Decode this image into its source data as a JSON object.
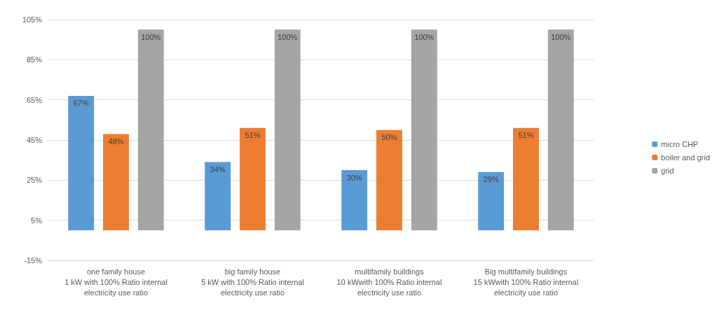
{
  "chart_data": {
    "type": "bar",
    "categories": [
      "one family house\n1 kW with 100% Ratio internal\nelectricity use ratio",
      "big family house\n5 kW with 100% Ratio internal\nelectricity use ratio",
      "multifamily buildings\n10 kWwith 100% Ratio internal\nelectricity use ratio",
      "Big multifamily buildings\n15 kWwith 100% Ratio internal\nelectricity use ratio"
    ],
    "series": [
      {
        "name": "micro CHP",
        "color": "#5b9bd5",
        "values": [
          67,
          34,
          30,
          29
        ],
        "value_labels": [
          "67%",
          "34%",
          "30%",
          "29%"
        ]
      },
      {
        "name": "boiler and grid",
        "color": "#ed7d31",
        "values": [
          48,
          51,
          50,
          51
        ],
        "value_labels": [
          "48%",
          "51%",
          "50%",
          "51%"
        ]
      },
      {
        "name": "grid",
        "color": "#a5a5a5",
        "values": [
          100,
          100,
          100,
          100
        ],
        "value_labels": [
          "100%",
          "100%",
          "100%",
          "100%"
        ]
      }
    ],
    "ylim": [
      -15,
      105
    ],
    "yticks": [
      {
        "value": -15,
        "label": "-15%"
      },
      {
        "value": 5,
        "label": "5%"
      },
      {
        "value": 25,
        "label": "25%"
      },
      {
        "value": 45,
        "label": "45%"
      },
      {
        "value": 65,
        "label": "65%"
      },
      {
        "value": 85,
        "label": "85%"
      },
      {
        "value": 105,
        "label": "105%"
      }
    ],
    "grid": true,
    "legend": "right"
  }
}
